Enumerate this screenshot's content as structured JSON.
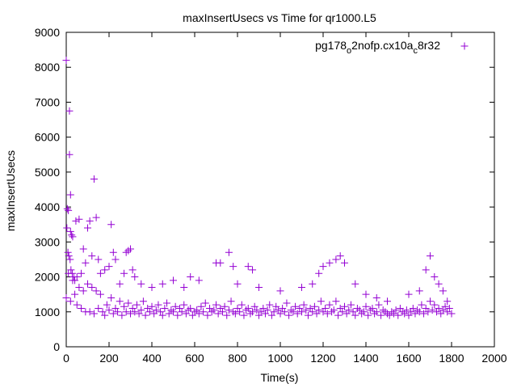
{
  "chart_data": {
    "type": "scatter",
    "title": "maxInsertUsecs vs Time for qr1000.L5",
    "xlabel": "Time(s)",
    "ylabel": "maxInsertUsecs",
    "xlim": [
      0,
      2000
    ],
    "ylim": [
      0,
      9000
    ],
    "xticks": [
      "0",
      "200",
      "400",
      "600",
      "800",
      "1000",
      "1200",
      "1400",
      "1600",
      "1800",
      "2000"
    ],
    "yticks": [
      "0",
      "1000",
      "2000",
      "3000",
      "4000",
      "5000",
      "6000",
      "7000",
      "8000",
      "9000"
    ],
    "grid": false,
    "legend": {
      "position": "top-right",
      "label_main": "pg178",
      "sub1": "o",
      "mid": "2nofp.cx10a",
      "sub2": "c",
      "tail": "8r32"
    },
    "series": [
      {
        "name": "pg178_o2nofp.cx10a_c8r32",
        "color": "#9400d3",
        "marker": "plus",
        "outliers": [
          [
            0,
            8200
          ],
          [
            5,
            3950
          ],
          [
            10,
            3900
          ],
          [
            15,
            6750
          ],
          [
            15,
            5500
          ],
          [
            20,
            4350
          ],
          [
            20,
            3300
          ],
          [
            25,
            3200
          ],
          [
            30,
            3150
          ],
          [
            3,
            3400
          ],
          [
            8,
            2700
          ],
          [
            12,
            2600
          ],
          [
            18,
            2500
          ],
          [
            22,
            2200
          ],
          [
            28,
            2100
          ],
          [
            35,
            2000
          ],
          [
            40,
            1900
          ],
          [
            45,
            3600
          ],
          [
            50,
            2000
          ],
          [
            60,
            3650
          ],
          [
            70,
            2100
          ],
          [
            80,
            2800
          ],
          [
            90,
            2400
          ],
          [
            100,
            3400
          ],
          [
            110,
            3600
          ],
          [
            120,
            2600
          ],
          [
            130,
            4800
          ],
          [
            140,
            3700
          ],
          [
            150,
            2500
          ],
          [
            160,
            2100
          ],
          [
            180,
            2200
          ],
          [
            200,
            2300
          ],
          [
            210,
            3500
          ],
          [
            220,
            2700
          ],
          [
            230,
            2500
          ],
          [
            250,
            1800
          ],
          [
            270,
            2100
          ],
          [
            280,
            2700
          ],
          [
            290,
            2750
          ],
          [
            300,
            2800
          ],
          [
            310,
            2200
          ],
          [
            320,
            2000
          ],
          [
            350,
            1800
          ],
          [
            400,
            1700
          ],
          [
            450,
            1800
          ],
          [
            500,
            1900
          ],
          [
            550,
            1700
          ],
          [
            580,
            2000
          ],
          [
            620,
            1900
          ],
          [
            700,
            2400
          ],
          [
            720,
            2400
          ],
          [
            760,
            2700
          ],
          [
            780,
            2300
          ],
          [
            800,
            1800
          ],
          [
            850,
            2300
          ],
          [
            870,
            2200
          ],
          [
            900,
            1700
          ],
          [
            1000,
            1600
          ],
          [
            1100,
            1700
          ],
          [
            1150,
            1800
          ],
          [
            1180,
            2100
          ],
          [
            1200,
            2300
          ],
          [
            1230,
            2400
          ],
          [
            1260,
            2500
          ],
          [
            1280,
            2600
          ],
          [
            1300,
            2400
          ],
          [
            1350,
            1800
          ],
          [
            1400,
            1500
          ],
          [
            1450,
            1400
          ],
          [
            1500,
            1300
          ],
          [
            1600,
            1500
          ],
          [
            1650,
            1600
          ],
          [
            1680,
            2200
          ],
          [
            1700,
            2600
          ],
          [
            1720,
            2000
          ],
          [
            1740,
            1800
          ],
          [
            1760,
            1600
          ],
          [
            1780,
            1300
          ]
        ],
        "baseline": {
          "x_start": 0,
          "x_step": 10,
          "y": [
            1400,
            2100,
            1300,
            1900,
            1500,
            1200,
            1700,
            1100,
            1600,
            1000,
            1800,
            1000,
            1700,
            950,
            1600,
            1100,
            1500,
            1000,
            900,
            1200,
            1050,
            1400,
            950,
            1100,
            1000,
            1300,
            900,
            1150,
            1000,
            1250,
            950,
            1100,
            1000,
            1200,
            950,
            1050,
            1300,
            900,
            1100,
            1000,
            1150,
            950,
            1050,
            1200,
            1000,
            900,
            1100,
            1250,
            950,
            1050,
            1000,
            1150,
            900,
            1100,
            1000,
            1200,
            950,
            1050,
            1100,
            900,
            1000,
            1050,
            950,
            1150,
            1000,
            1250,
            900,
            1100,
            1000,
            1050,
            1200,
            950,
            1100,
            1000,
            1150,
            900,
            1050,
            1300,
            1000,
            950,
            1100,
            1000,
            1200,
            900,
            1050,
            1100,
            950,
            1000,
            1150,
            1050,
            900,
            1000,
            1100,
            950,
            1050,
            1200,
            900,
            1000,
            1150,
            1050,
            950,
            1100,
            1000,
            1250,
            900,
            1050,
            1000,
            1150,
            950,
            1100,
            1000,
            1200,
            1050,
            900,
            1100,
            1000,
            1150,
            950,
            1050,
            1300,
            1000,
            1100,
            950,
            1200,
            1000,
            1050,
            1300,
            900,
            1100,
            1000,
            1150,
            950,
            1050,
            1200,
            1000,
            900,
            1100,
            1050,
            950,
            1000,
            1150,
            900,
            1050,
            1100,
            950,
            1000,
            1200,
            900,
            1050,
            1000,
            950,
            900,
            1000,
            950,
            1050,
            900,
            1100,
            1000,
            950,
            1050,
            900,
            1000,
            1100,
            950,
            1050,
            1000,
            1200,
            950,
            1100,
            1000,
            1300,
            1050,
            1200,
            1000,
            1100,
            950,
            1050,
            1150,
            1000,
            1100,
            950
          ]
        }
      }
    ]
  }
}
